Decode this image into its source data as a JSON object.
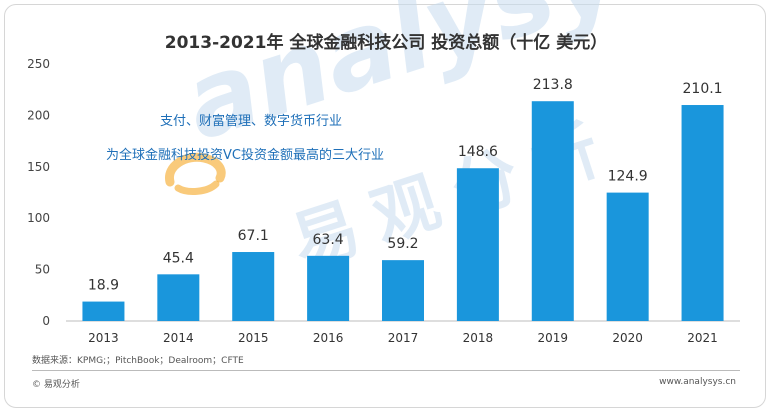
{
  "chart_data": {
    "type": "bar",
    "title": "2013-2021年 全球金融科技公司 投资总额（十亿 美元）",
    "categories": [
      "2013",
      "2014",
      "2015",
      "2016",
      "2017",
      "2018",
      "2019",
      "2020",
      "2021"
    ],
    "values": [
      18.9,
      45.4,
      67.1,
      63.4,
      59.2,
      148.6,
      213.8,
      124.9,
      210.1
    ],
    "value_labels": [
      "18.9",
      "45.4",
      "67.1",
      "63.4",
      "59.2",
      "148.6",
      "213.8",
      "124.9",
      "210.1"
    ],
    "ylim": [
      0,
      250
    ],
    "yticks": [
      "0",
      "50",
      "100",
      "150",
      "200",
      "250"
    ],
    "xlabel": "",
    "ylabel": "",
    "grid": false,
    "bar_color": "#1a96dc",
    "annotations": [
      "支付、财富管理、数字货币行业",
      "为全球金融科技投资VC投资金额最高的三大行业"
    ]
  },
  "annotation_color": "#1e6fb8",
  "watermark": {
    "text_en": "analysys",
    "text_cn": "易观分析",
    "logo_color": "#f5a623"
  },
  "source": "数据来源：KPMG;；PitchBook；Dealroom；CFTE",
  "footer": {
    "brand": "© 易观分析",
    "url": "www.analysys.cn"
  }
}
